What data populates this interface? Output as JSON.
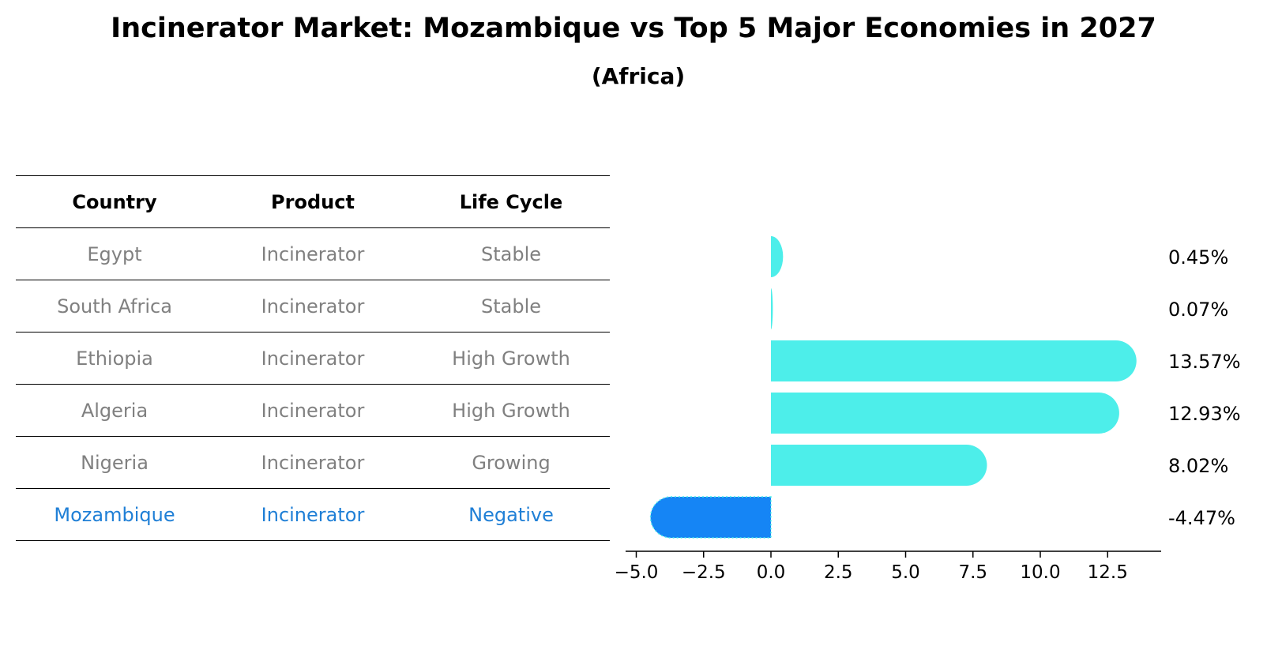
{
  "title": "Incinerator Market: Mozambique vs Top 5 Major Economies in 2027",
  "subtitle": "(Africa)",
  "table": {
    "headers": [
      "Country",
      "Product",
      "Life Cycle"
    ],
    "rows": [
      {
        "country": "Egypt",
        "product": "Incinerator",
        "life_cycle": "Stable"
      },
      {
        "country": "South Africa",
        "product": "Incinerator",
        "life_cycle": "Stable"
      },
      {
        "country": "Ethiopia",
        "product": "Incinerator",
        "life_cycle": "High Growth"
      },
      {
        "country": "Algeria",
        "product": "Incinerator",
        "life_cycle": "High Growth"
      },
      {
        "country": "Nigeria",
        "product": "Incinerator",
        "life_cycle": "Growing"
      },
      {
        "country": "Mozambique",
        "product": "Incinerator",
        "life_cycle": "Negative"
      }
    ]
  },
  "colors": {
    "bar": "#4deeea",
    "highlight_bar": "#1585f5",
    "highlight_text": "#1f7fd6",
    "muted_text": "#808080"
  },
  "chart_data": {
    "type": "bar",
    "orientation": "horizontal",
    "categories": [
      "Egypt",
      "South Africa",
      "Ethiopia",
      "Algeria",
      "Nigeria",
      "Mozambique"
    ],
    "values": [
      0.45,
      0.07,
      13.57,
      12.93,
      8.02,
      -4.47
    ],
    "value_labels": [
      "0.45%",
      "0.07%",
      "13.57%",
      "12.93%",
      "8.02%",
      "-4.47%"
    ],
    "highlight": "Mozambique",
    "xlim": [
      -5.5,
      14.5
    ],
    "xticks": [
      -5.0,
      -2.5,
      0.0,
      2.5,
      5.0,
      7.5,
      10.0,
      12.5
    ],
    "xtick_labels": [
      "−5.0",
      "−2.5",
      "0.0",
      "2.5",
      "5.0",
      "7.5",
      "10.0",
      "12.5"
    ],
    "title": "Incinerator Market: Mozambique vs Top 5 Major Economies in 2027",
    "xlabel": "",
    "ylabel": ""
  }
}
